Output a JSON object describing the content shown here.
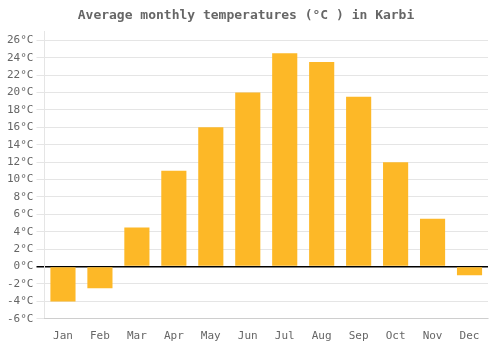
{
  "chart_data": {
    "type": "bar",
    "title": "Average monthly temperatures (°C ) in Karbi",
    "categories": [
      "Jan",
      "Feb",
      "Mar",
      "Apr",
      "May",
      "Jun",
      "Jul",
      "Aug",
      "Sep",
      "Oct",
      "Nov",
      "Dec"
    ],
    "values": [
      -4.0,
      -2.5,
      4.5,
      11.0,
      16.0,
      20.0,
      24.5,
      23.5,
      19.5,
      12.0,
      5.5,
      -1.0
    ],
    "color": "#FDB827",
    "ylim": [
      -6,
      27
    ],
    "yticks": [
      {
        "value": -6,
        "label": "-6°C"
      },
      {
        "value": -4,
        "label": "-4°C"
      },
      {
        "value": -2,
        "label": "-2°C"
      },
      {
        "value": 0,
        "label": "0°C"
      },
      {
        "value": 2,
        "label": "2°C"
      },
      {
        "value": 4,
        "label": "4°C"
      },
      {
        "value": 6,
        "label": "6°C"
      },
      {
        "value": 8,
        "label": "8°C"
      },
      {
        "value": 10,
        "label": "10°C"
      },
      {
        "value": 12,
        "label": "12°C"
      },
      {
        "value": 14,
        "label": "14°C"
      },
      {
        "value": 16,
        "label": "16°C"
      },
      {
        "value": 18,
        "label": "18°C"
      },
      {
        "value": 20,
        "label": "20°C"
      },
      {
        "value": 22,
        "label": "22°C"
      },
      {
        "value": 24,
        "label": "24°C"
      },
      {
        "value": 26,
        "label": "26°C"
      }
    ],
    "grid": true
  }
}
